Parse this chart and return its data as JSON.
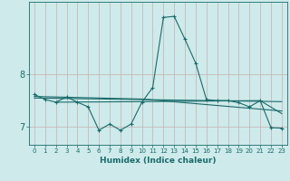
{
  "background_color": "#ceeaea",
  "line_color": "#1a6b6b",
  "grid_color_v": "#c8b0b0",
  "grid_color_h": "#c8b0b0",
  "xlim": [
    -0.5,
    23.5
  ],
  "ylim": [
    6.65,
    9.4
  ],
  "xlabel": "Humidex (Indice chaleur)",
  "yticks": [
    7,
    8
  ],
  "ytick_labels": [
    "7",
    "8"
  ],
  "xticks": [
    0,
    1,
    2,
    3,
    4,
    5,
    6,
    7,
    8,
    9,
    10,
    11,
    12,
    13,
    14,
    15,
    16,
    17,
    18,
    19,
    20,
    21,
    22,
    23
  ],
  "series1": [
    [
      0,
      7.62
    ],
    [
      1,
      7.52
    ],
    [
      2,
      7.47
    ],
    [
      3,
      7.57
    ],
    [
      4,
      7.47
    ],
    [
      5,
      7.38
    ],
    [
      6,
      6.93
    ],
    [
      7,
      7.05
    ],
    [
      8,
      6.93
    ],
    [
      9,
      7.05
    ],
    [
      10,
      7.47
    ],
    [
      11,
      7.75
    ],
    [
      12,
      9.1
    ],
    [
      13,
      9.12
    ],
    [
      14,
      8.68
    ],
    [
      15,
      8.22
    ],
    [
      16,
      7.52
    ],
    [
      17,
      7.5
    ],
    [
      18,
      7.5
    ],
    [
      19,
      7.46
    ],
    [
      20,
      7.38
    ],
    [
      21,
      7.5
    ],
    [
      22,
      6.98
    ],
    [
      23,
      6.97
    ]
  ],
  "line2": [
    [
      0,
      7.55
    ],
    [
      10,
      7.52
    ],
    [
      23,
      7.48
    ]
  ],
  "line3": [
    [
      0,
      7.58
    ],
    [
      10,
      7.53
    ],
    [
      23,
      7.3
    ]
  ],
  "line4": [
    [
      2,
      7.47
    ],
    [
      10,
      7.48
    ],
    [
      21,
      7.5
    ],
    [
      23,
      7.25
    ]
  ]
}
